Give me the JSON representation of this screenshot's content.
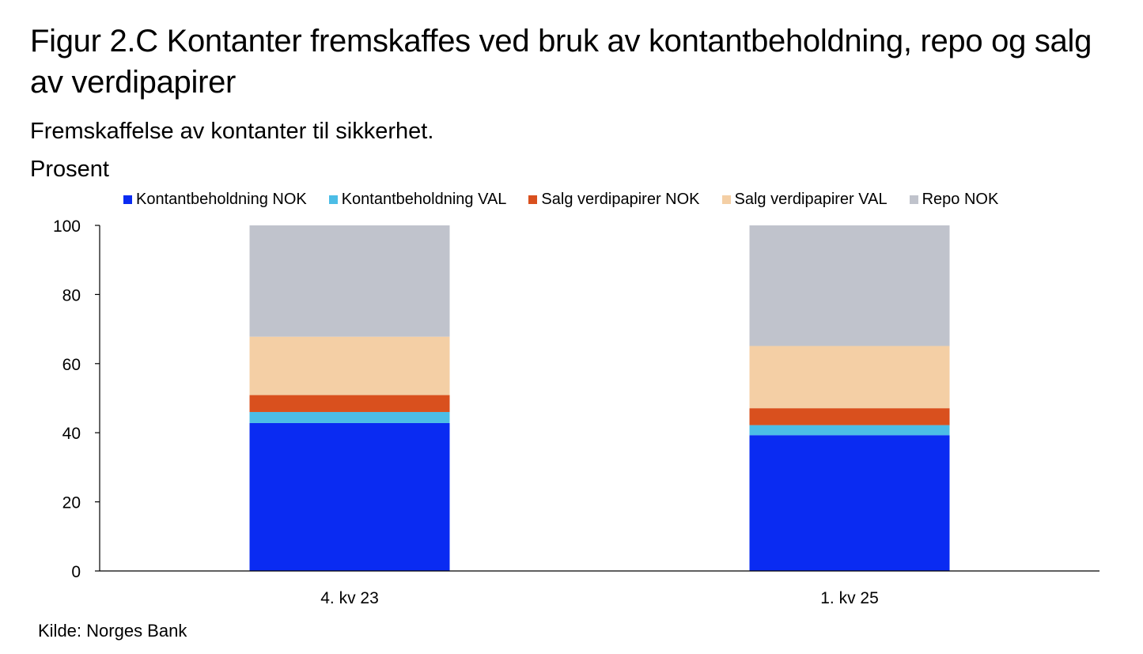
{
  "title": "Figur 2.C Kontanter fremskaffes ved bruk av kontantbeholdning, repo og salg av verdipapirer",
  "subtitle": "Fremskaffelse av kontanter til sikkerhet.",
  "unit": "Prosent",
  "source": "Kilde: Norges Bank",
  "chart_data": {
    "type": "bar",
    "stacked": true,
    "categories": [
      "4. kv 23",
      "1. kv 25"
    ],
    "series": [
      {
        "name": "Kontantbeholdning NOK",
        "color": "#0a2bf2",
        "values": [
          42.8,
          39.3
        ]
      },
      {
        "name": "Kontantbeholdning VAL",
        "color": "#4cbde6",
        "values": [
          3.2,
          2.9
        ]
      },
      {
        "name": "Salg verdipapirer NOK",
        "color": "#d9501e",
        "values": [
          4.9,
          4.9
        ]
      },
      {
        "name": "Salg verdipapirer VAL",
        "color": "#f4cfa5",
        "values": [
          16.9,
          18.0
        ]
      },
      {
        "name": "Repo NOK",
        "color": "#c0c3cc",
        "values": [
          32.2,
          34.9
        ]
      }
    ],
    "ylim": [
      0,
      100
    ],
    "yticks": [
      0,
      20,
      40,
      60,
      80,
      100
    ],
    "grid": false,
    "legend_position": "top"
  }
}
